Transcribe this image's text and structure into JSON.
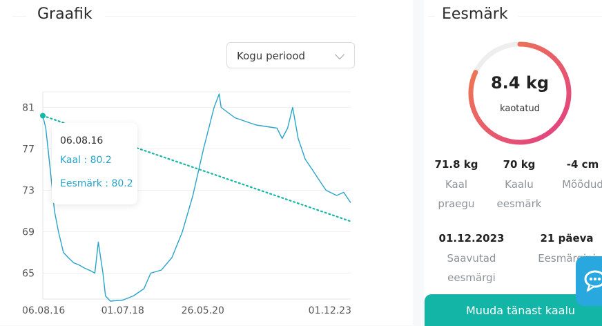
{
  "left_section": {
    "title": "Graafik"
  },
  "right_section": {
    "title": "Eesmärk"
  },
  "period_select": {
    "value": "Kogu periood"
  },
  "tooltip": {
    "date": "06.08.16",
    "weight_label": "Kaal : 80.2",
    "goal_label": "Eesmärk : 80.2"
  },
  "goal_ring": {
    "value": "8.4 kg",
    "label": "kaotatud",
    "progress_fraction": 0.82
  },
  "stats": [
    {
      "value": "71.8 kg",
      "label_lines": [
        "Kaal",
        "praegu"
      ]
    },
    {
      "value": "70 kg",
      "label_lines": [
        "Kaalu",
        "eesmärk"
      ]
    },
    {
      "value": "-4 cm",
      "label_lines": [
        "Mõõdud"
      ]
    },
    {
      "value": "01.12.2023",
      "label_lines": [
        "Saavutad",
        "eesmärgi"
      ]
    },
    {
      "value": "21 päeva",
      "label_lines": [
        "Eesmärgini"
      ]
    }
  ],
  "cta": {
    "label": "Muuda tänast kaalu"
  },
  "colors": {
    "accent": "#13b5a7",
    "weight_line": "#29a3c8",
    "goal_line": "#13b5a7",
    "ring_start": "#f07f4c",
    "ring_end": "#e03e85",
    "chat": "#29a8e0"
  },
  "chart_data": {
    "type": "line",
    "y_ticks": [
      65,
      69,
      73,
      77,
      81
    ],
    "ylim": [
      62.5,
      82.5
    ],
    "x_tick_labels": [
      "06.08.16",
      "01.07.18",
      "26.05.20",
      "01.12.23"
    ],
    "x_tick_dates": [
      "2016-08-06",
      "2018-07-01",
      "2020-05-26",
      "2023-12-01"
    ],
    "x_range": [
      "2016-08-06",
      "2023-12-01"
    ],
    "grid": true,
    "series": [
      {
        "key": "weight",
        "points": [
          [
            "2016-08-06",
            80.2
          ],
          [
            "2016-09-01",
            79.0
          ],
          [
            "2016-10-10",
            75.0
          ],
          [
            "2016-11-15",
            71.0
          ],
          [
            "2016-12-20",
            69.0
          ],
          [
            "2017-02-01",
            67.0
          ],
          [
            "2017-03-15",
            66.5
          ],
          [
            "2017-05-01",
            66.0
          ],
          [
            "2017-06-15",
            65.8
          ],
          [
            "2017-08-01",
            65.5
          ],
          [
            "2017-10-01",
            65.2
          ],
          [
            "2017-11-01",
            65.0
          ],
          [
            "2017-12-01",
            68.0
          ],
          [
            "2018-01-10",
            65.0
          ],
          [
            "2018-02-01",
            62.8
          ],
          [
            "2018-03-15",
            62.3
          ],
          [
            "2018-07-01",
            62.4
          ],
          [
            "2018-10-01",
            62.8
          ],
          [
            "2019-01-01",
            63.5
          ],
          [
            "2019-03-01",
            65.0
          ],
          [
            "2019-06-01",
            65.3
          ],
          [
            "2019-09-01",
            66.5
          ],
          [
            "2019-12-01",
            69.0
          ],
          [
            "2020-03-01",
            72.5
          ],
          [
            "2020-06-01",
            77.0
          ],
          [
            "2020-09-01",
            81.0
          ],
          [
            "2020-10-15",
            82.3
          ],
          [
            "2020-11-01",
            81.0
          ],
          [
            "2021-03-01",
            80.0
          ],
          [
            "2021-09-01",
            79.3
          ],
          [
            "2022-03-01",
            79.0
          ],
          [
            "2022-04-15",
            78.0
          ],
          [
            "2022-06-01",
            79.0
          ],
          [
            "2022-07-15",
            81.0
          ],
          [
            "2022-09-01",
            78.0
          ],
          [
            "2022-11-01",
            76.0
          ],
          [
            "2023-01-01",
            75.0
          ],
          [
            "2023-03-01",
            74.0
          ],
          [
            "2023-05-01",
            73.0
          ],
          [
            "2023-08-01",
            72.5
          ],
          [
            "2023-10-01",
            72.8
          ],
          [
            "2023-12-01",
            71.8
          ]
        ]
      },
      {
        "key": "goal",
        "points": [
          [
            "2016-08-06",
            80.2
          ],
          [
            "2023-12-01",
            70.0
          ]
        ]
      }
    ]
  }
}
